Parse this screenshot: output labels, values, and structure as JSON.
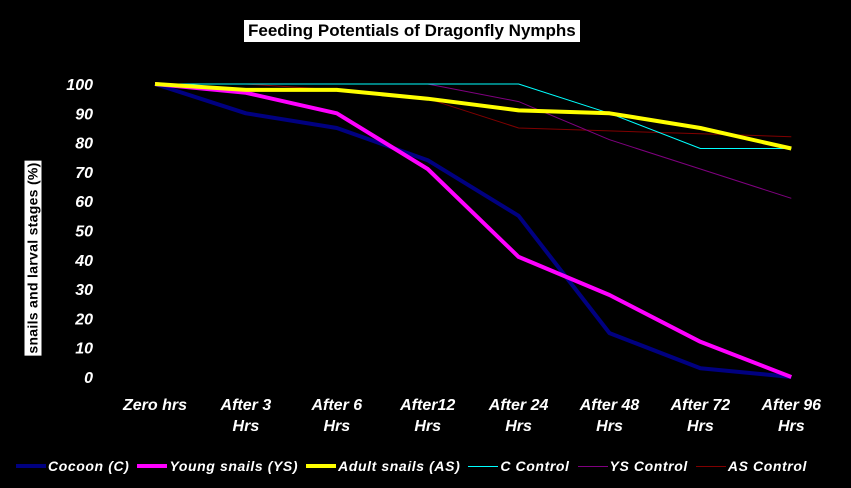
{
  "chart_data": {
    "type": "line",
    "title": "Feeding Potentials of Dragonfly Nymphs",
    "xlabel": "",
    "ylabel": "snails and larval stages (%)",
    "ylim": [
      0,
      100
    ],
    "yticks": [
      "0",
      "10",
      "20",
      "30",
      "40",
      "50",
      "60",
      "70",
      "80",
      "90",
      "100"
    ],
    "categories": [
      [
        "Zero hrs"
      ],
      [
        "After 3",
        "Hrs"
      ],
      [
        "After 6",
        "Hrs"
      ],
      [
        "After12",
        "Hrs"
      ],
      [
        "After 24",
        "Hrs"
      ],
      [
        "After 48",
        "Hrs"
      ],
      [
        "After 72",
        "Hrs"
      ],
      [
        "After 96",
        "Hrs"
      ]
    ],
    "grid": false,
    "legend_position": "bottom",
    "series": [
      {
        "name": "Cocoon (C)",
        "color": "#000080",
        "weight": "thick",
        "values": [
          100,
          90,
          85,
          74,
          55,
          15,
          3,
          0
        ]
      },
      {
        "name": "Young snails (YS)",
        "color": "#ff00ff",
        "weight": "thick",
        "values": [
          100,
          97,
          90,
          71,
          41,
          28,
          12,
          0
        ]
      },
      {
        "name": "Adult snails (AS)",
        "color": "#ffff00",
        "weight": "thick",
        "values": [
          100,
          98,
          98,
          95,
          91,
          90,
          85,
          78
        ]
      },
      {
        "name": "C Control",
        "color": "#00ffff",
        "weight": "thin",
        "values": [
          100,
          100,
          100,
          100,
          100,
          90,
          78,
          78
        ]
      },
      {
        "name": "YS Control",
        "color": "#800080",
        "weight": "thin",
        "values": [
          100,
          100,
          100,
          100,
          94,
          81,
          71,
          61
        ]
      },
      {
        "name": "AS Control",
        "color": "#800000",
        "weight": "thin",
        "values": [
          100,
          100,
          98,
          95,
          85,
          84,
          83,
          82
        ]
      }
    ]
  }
}
